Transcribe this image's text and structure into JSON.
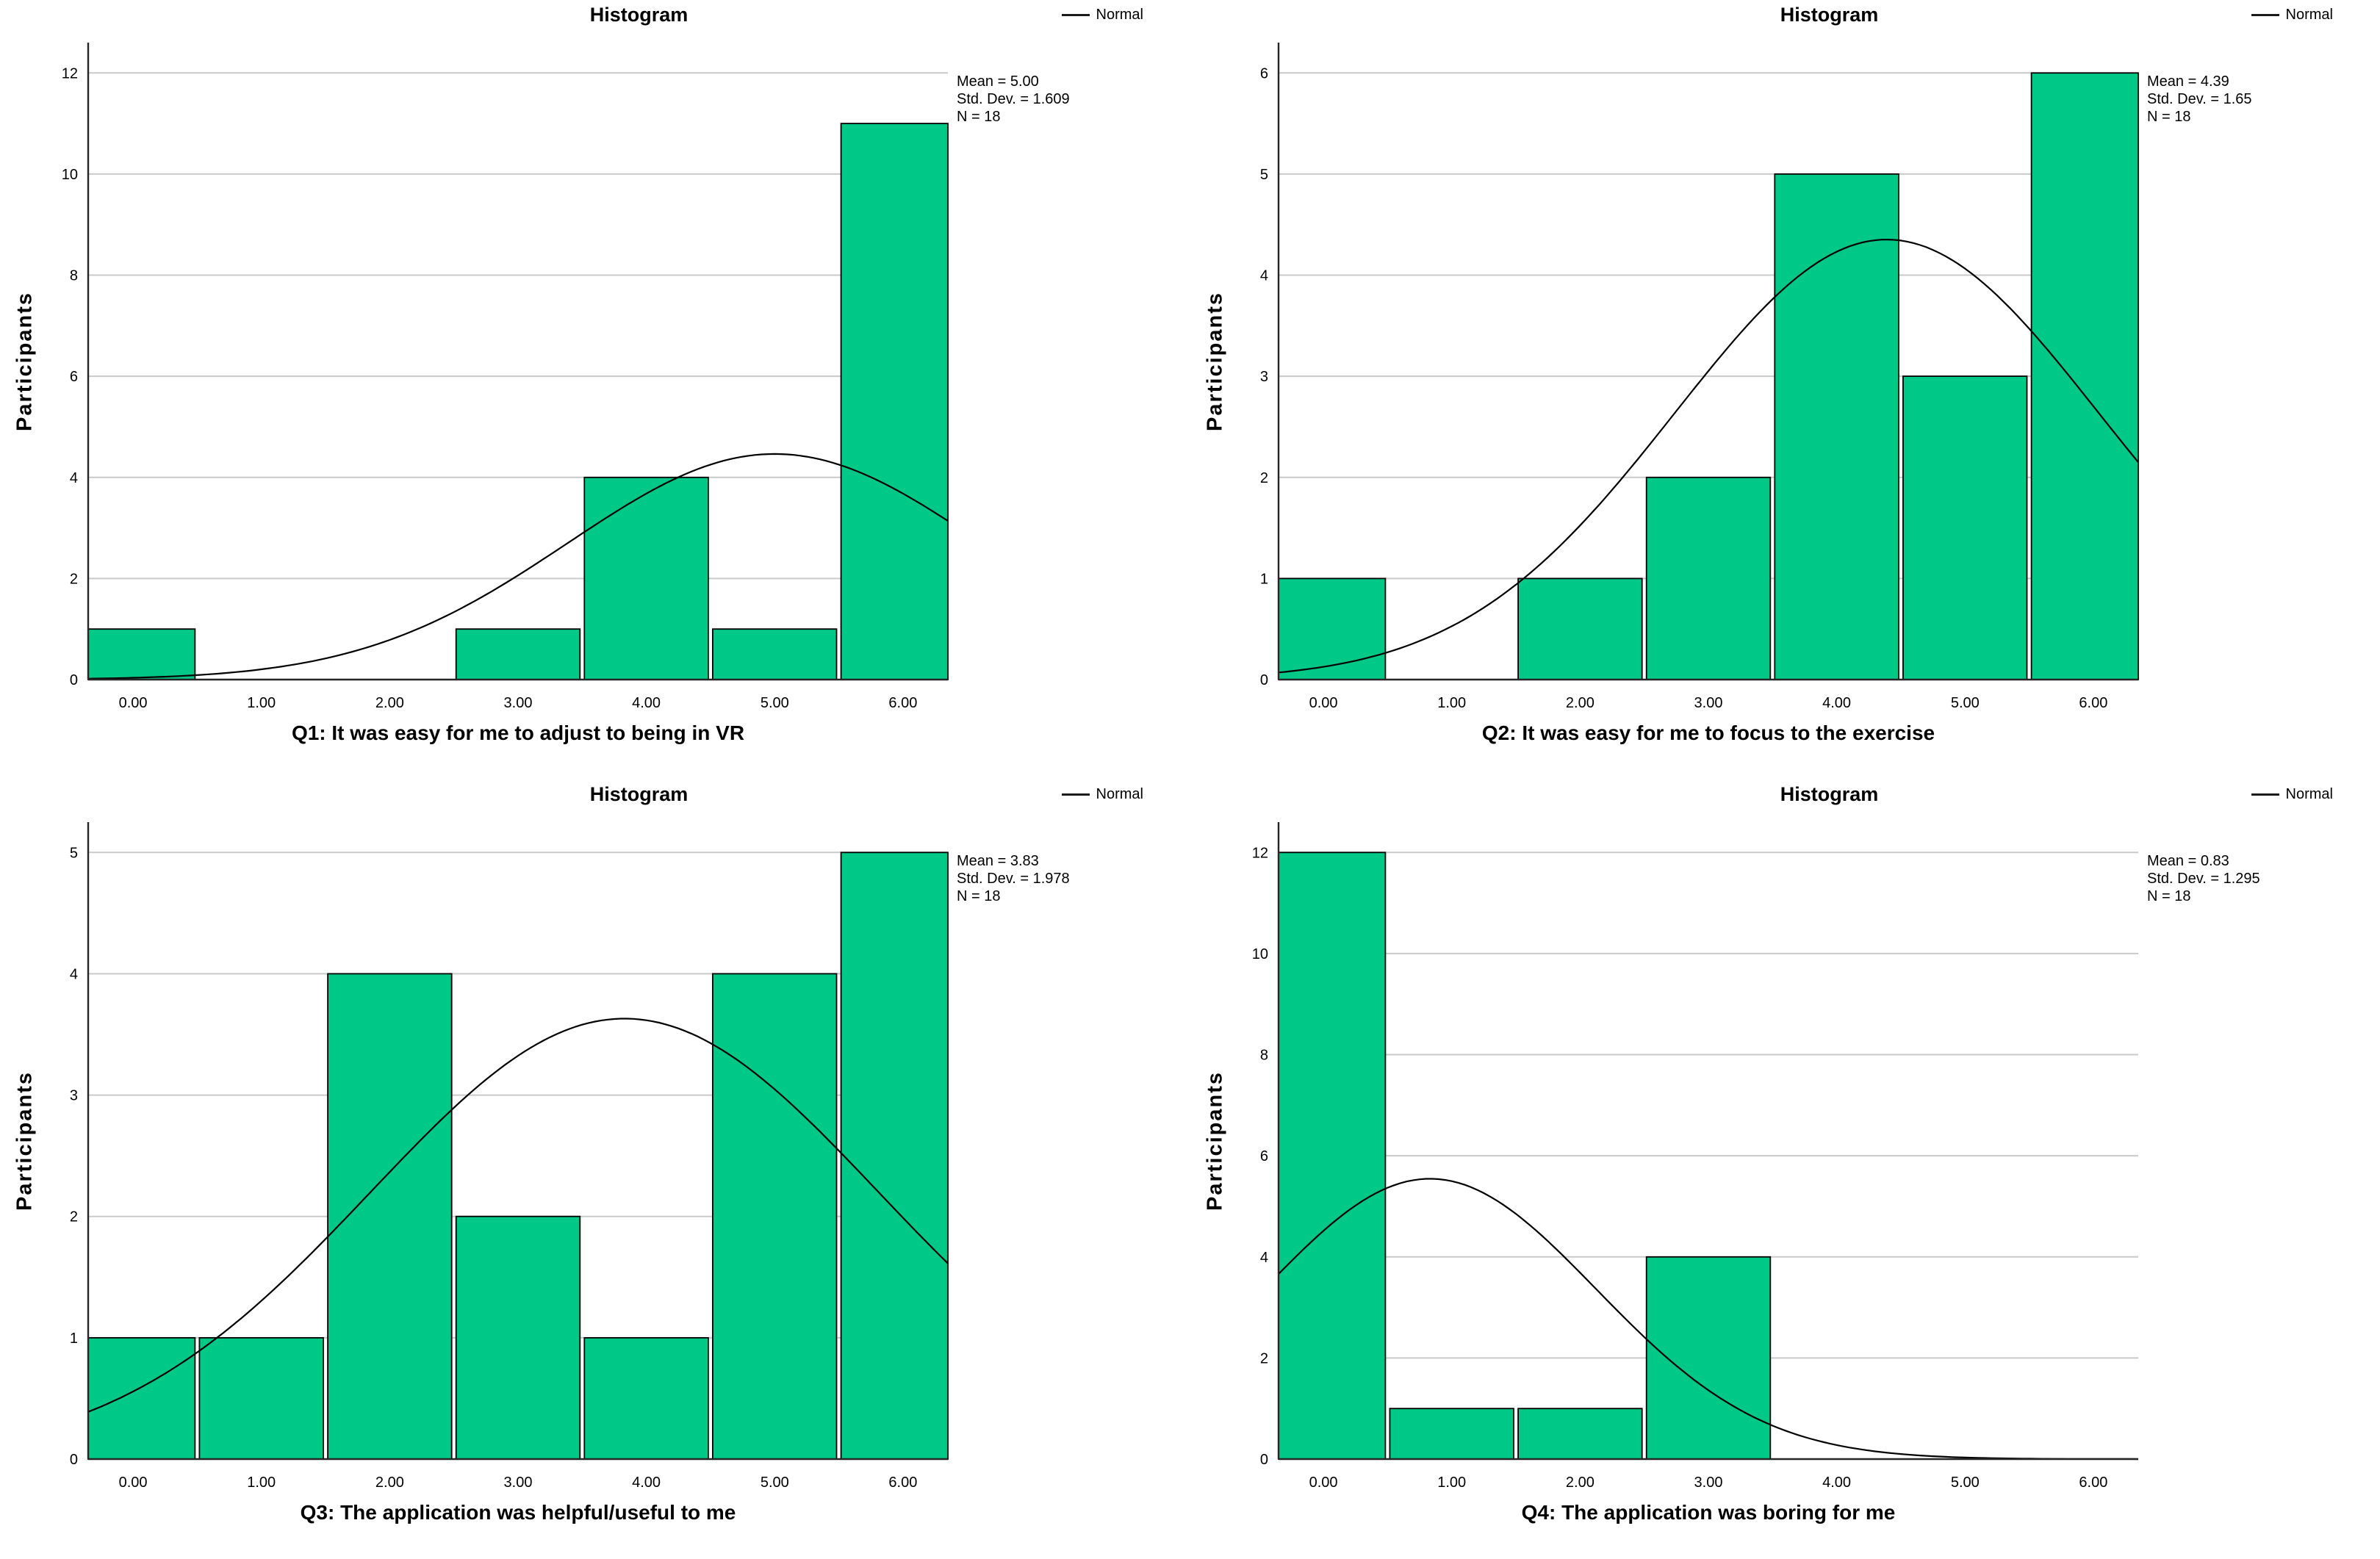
{
  "shared": {
    "x_ticks": [
      "0.00",
      "1.00",
      "2.00",
      "3.00",
      "4.00",
      "5.00",
      "6.00"
    ],
    "colors": {
      "bar_fill": "#00C886",
      "bar_stroke": "#000000",
      "grid": "#C9C9C9",
      "axis": "#262626",
      "curve": "#000000",
      "background": "#FFFFFF"
    }
  },
  "chart_data": [
    {
      "type": "bar",
      "title": "Histogram",
      "legend": "Normal",
      "ylabel": "Participants",
      "xlabel": "Q1: It was easy for me to adjust to being in VR",
      "categories": [
        0,
        1,
        2,
        3,
        4,
        5,
        6
      ],
      "x_tick_labels": [
        "0.00",
        "1.00",
        "2.00",
        "3.00",
        "4.00",
        "5.00",
        "6.00"
      ],
      "values": [
        1,
        0,
        0,
        1,
        4,
        1,
        11
      ],
      "y_ticks": [
        0,
        2,
        4,
        6,
        8,
        10,
        12
      ],
      "xlim": [
        -0.35,
        6.35
      ],
      "grid": true,
      "legend_position": "top-right",
      "normal_curve": true,
      "stats": {
        "mean": 5.0,
        "sd": 1.609,
        "n": 18,
        "mean_label": "Mean = 5.00",
        "sd_label": "Std. Dev. = 1.609",
        "n_label": "N = 18"
      }
    },
    {
      "type": "bar",
      "title": "Histogram",
      "legend": "Normal",
      "ylabel": "Participants",
      "xlabel": "Q2: It was easy for me to focus to the exercise",
      "categories": [
        0,
        1,
        2,
        3,
        4,
        5,
        6
      ],
      "x_tick_labels": [
        "0.00",
        "1.00",
        "2.00",
        "3.00",
        "4.00",
        "5.00",
        "6.00"
      ],
      "values": [
        1,
        0,
        1,
        2,
        5,
        3,
        6
      ],
      "y_ticks": [
        0,
        1,
        2,
        3,
        4,
        5,
        6
      ],
      "xlim": [
        -0.35,
        6.35
      ],
      "grid": true,
      "legend_position": "top-right",
      "normal_curve": true,
      "stats": {
        "mean": 4.39,
        "sd": 1.65,
        "n": 18,
        "mean_label": "Mean = 4.39",
        "sd_label": "Std. Dev. = 1.65",
        "n_label": "N = 18"
      }
    },
    {
      "type": "bar",
      "title": "Histogram",
      "legend": "Normal",
      "ylabel": "Participants",
      "xlabel": "Q3: The application was helpful/useful to me",
      "categories": [
        0,
        1,
        2,
        3,
        4,
        5,
        6
      ],
      "x_tick_labels": [
        "0.00",
        "1.00",
        "2.00",
        "3.00",
        "4.00",
        "5.00",
        "6.00"
      ],
      "values": [
        1,
        1,
        4,
        2,
        1,
        4,
        5
      ],
      "y_ticks": [
        0,
        1,
        2,
        3,
        4,
        5
      ],
      "xlim": [
        -0.35,
        6.35
      ],
      "grid": true,
      "legend_position": "top-right",
      "normal_curve": true,
      "stats": {
        "mean": 3.83,
        "sd": 1.978,
        "n": 18,
        "mean_label": "Mean = 3.83",
        "sd_label": "Std. Dev. = 1.978",
        "n_label": "N = 18"
      }
    },
    {
      "type": "bar",
      "title": "Histogram",
      "legend": "Normal",
      "ylabel": "Participants",
      "xlabel": "Q4: The application was boring for me",
      "categories": [
        0,
        1,
        2,
        3,
        4,
        5,
        6
      ],
      "x_tick_labels": [
        "0.00",
        "1.00",
        "2.00",
        "3.00",
        "4.00",
        "5.00",
        "6.00"
      ],
      "values": [
        12,
        1,
        1,
        4,
        0,
        0,
        0
      ],
      "y_ticks": [
        0,
        2,
        4,
        6,
        8,
        10,
        12
      ],
      "xlim": [
        -0.35,
        6.35
      ],
      "grid": true,
      "legend_position": "top-right",
      "normal_curve": true,
      "stats": {
        "mean": 0.83,
        "sd": 1.295,
        "n": 18,
        "mean_label": "Mean = 0.83",
        "sd_label": "Std. Dev. = 1.295",
        "n_label": "N = 18"
      }
    }
  ]
}
